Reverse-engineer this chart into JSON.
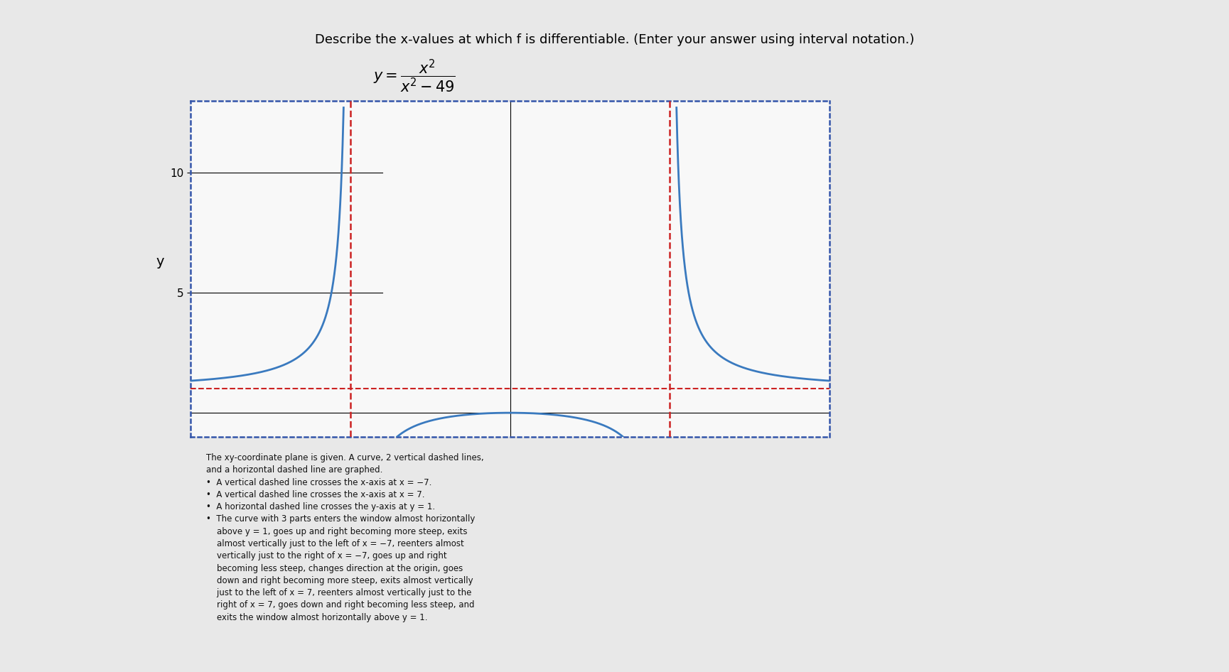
{
  "title": "Describe the x-values at which f is differentiable. (Enter your answer using interval notation.)",
  "formula_y": "y =",
  "formula_num": "x²",
  "formula_den": "x² − 49",
  "vline1_x": -7,
  "vline2_x": 7,
  "hline_y": 1,
  "xlim": [
    -14,
    14
  ],
  "ylim": [
    -1,
    13
  ],
  "yticks": [
    5,
    10
  ],
  "ylabel": "y",
  "curve_color": "#3a7abf",
  "vline_color": "#cc2222",
  "hline_color": "#cc2222",
  "border_color": "#3355aa",
  "bg_color": "#f5f5f5",
  "outer_bg": "#e8e8e8",
  "description_bg": "#d9d9d9",
  "description_text_color": "#111111",
  "plot_bg": "#f8f8f8",
  "title_fontsize": 13,
  "axis_label_fontsize": 13,
  "tick_fontsize": 11
}
